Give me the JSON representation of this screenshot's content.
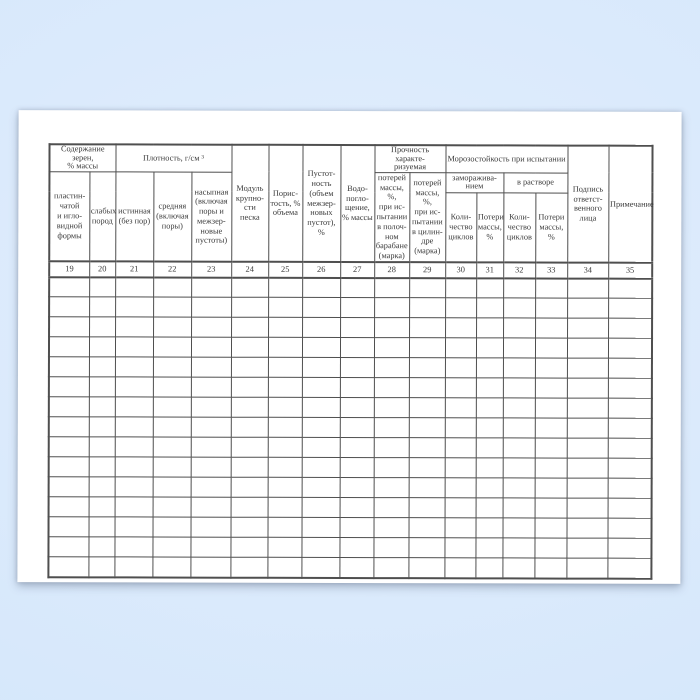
{
  "colors": {
    "background_center": "#e2eefd",
    "background_mid": "#d7e8fb",
    "background_edge": "#cfe2f7",
    "page": "#ffffff",
    "table_border": "#4f4f4f",
    "text": "#3a3a3a"
  },
  "table": {
    "group_headers": {
      "grain_content": "Содержание зерен,\n% массы",
      "density": "Плотность, г/см ³",
      "strength": "Прочность характе-\nризуемая",
      "frost_resistance": "Морозостойкость при испытании",
      "by_freezing": "заморажива-\nнием",
      "in_solution": "в растворе"
    },
    "columns": [
      {
        "num": "19",
        "label": "пластин-\nчатой\nи игло-\nвидной\nформы"
      },
      {
        "num": "20",
        "label": "слабых\nпород"
      },
      {
        "num": "21",
        "label": "истинная\n(без пор)"
      },
      {
        "num": "22",
        "label": "средняя\n(включая\nпоры)"
      },
      {
        "num": "23",
        "label": "насыпная\n(включая\nпоры и\nмежзер-\nновые\nпустоты)"
      },
      {
        "num": "24",
        "label": "Модуль\nкрупно-\nсти\nпеска"
      },
      {
        "num": "25",
        "label": "Порис-\nтость, %\nобъема"
      },
      {
        "num": "26",
        "label": "Пустот-\nность\n(объем\nмежзер-\nновых\nпустот), %"
      },
      {
        "num": "27",
        "label": "Водо-\nпогло-\nщение,\n% массы"
      },
      {
        "num": "28",
        "label": "потерей\nмассы, %,\nпри ис-\nпытании\nв полоч-\nном\nбарабане\n(марка)"
      },
      {
        "num": "29",
        "label": "потерей\nмассы, %,\nпри ис-\nпытании\nв цилин-\nдре\n(марка)"
      },
      {
        "num": "30",
        "label": "Коли-\nчество\nциклов"
      },
      {
        "num": "31",
        "label": "Потери\nмассы,\n%"
      },
      {
        "num": "32",
        "label": "Коли-\nчество\nциклов"
      },
      {
        "num": "33",
        "label": "Потери\nмассы, %"
      },
      {
        "num": "34",
        "label": "Подпись\nответст-\nвенного\nлица"
      },
      {
        "num": "35",
        "label": "Примечание"
      }
    ],
    "empty_row_count": 15,
    "empty_cell_value": ""
  }
}
